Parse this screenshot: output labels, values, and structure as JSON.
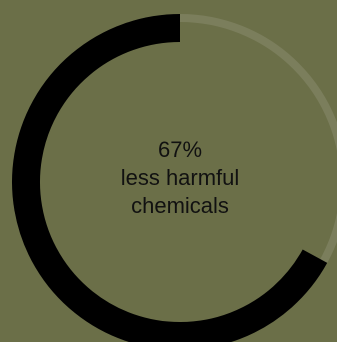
{
  "colors": {
    "background": "#6b6f48",
    "progress": "#000000",
    "track": "#7b7e5c",
    "text": "#111111"
  },
  "chart_data": {
    "type": "pie",
    "variant": "donut-progress",
    "value": 67,
    "max": 100,
    "labels": {
      "value_text": "67%",
      "line2": "less harmful",
      "line3": "chemicals"
    }
  }
}
